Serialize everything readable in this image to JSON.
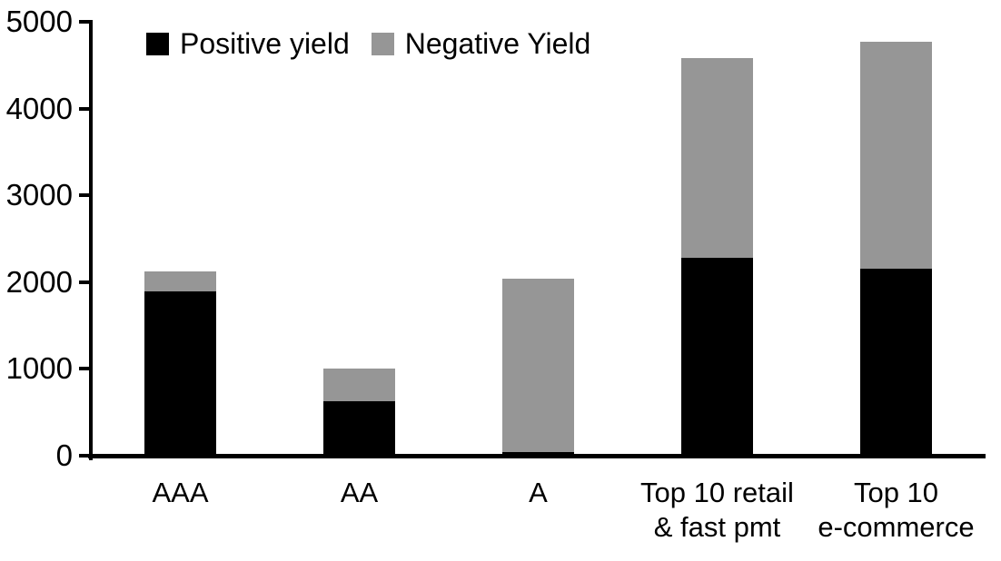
{
  "chart_data": {
    "type": "bar",
    "stacked": true,
    "title": "",
    "xlabel": "",
    "ylabel": "",
    "ylim": [
      0,
      5000
    ],
    "yticks": [
      0,
      1000,
      2000,
      3000,
      4000,
      5000
    ],
    "grid": false,
    "legend_position": "top",
    "categories": [
      "AAA",
      "AA",
      "A",
      "Top 10 retail & fast pmt",
      "Top 10 e-commerce"
    ],
    "category_label_lines": [
      [
        "AAA"
      ],
      [
        "AA"
      ],
      [
        "A"
      ],
      [
        "Top 10 retail",
        "& fast pmt"
      ],
      [
        "Top 10",
        "e-commerce"
      ]
    ],
    "series": [
      {
        "name": "Positive yield",
        "color": "#000000",
        "values": [
          1890,
          620,
          40,
          2280,
          2150
        ]
      },
      {
        "name": "Negative Yield",
        "color": "#969696",
        "values": [
          230,
          380,
          2000,
          2300,
          2620
        ]
      }
    ],
    "totals": [
      2120,
      1000,
      2040,
      4580,
      4770
    ]
  },
  "colors": {
    "axis": "#000000",
    "background": "#ffffff",
    "text": "#000000"
  }
}
